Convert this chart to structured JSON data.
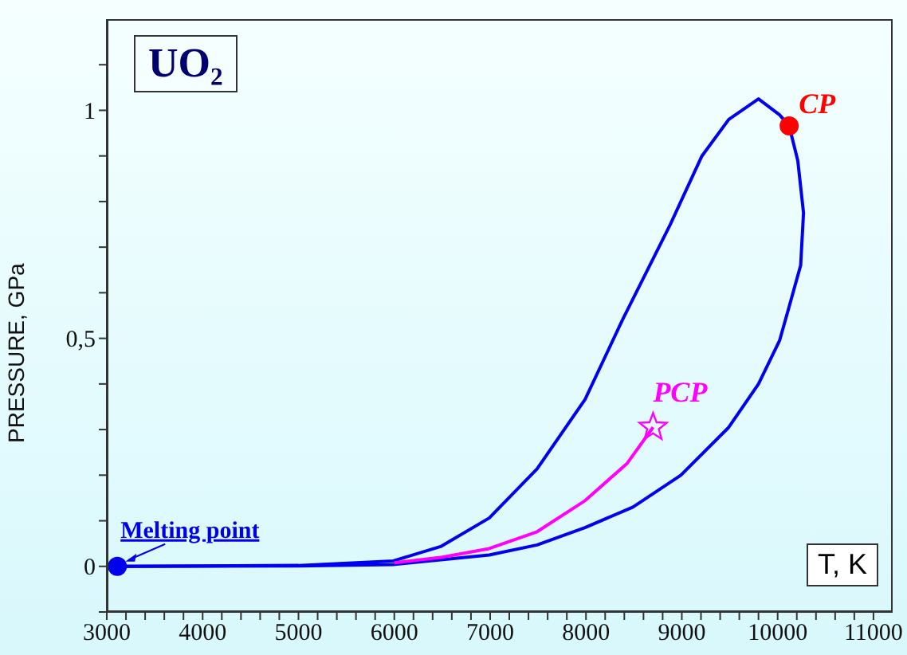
{
  "chart_data": {
    "type": "line",
    "title": "UO₂",
    "xlabel": "T, K",
    "ylabel": "PRESSURE, GPa",
    "xlim": [
      3000,
      11200
    ],
    "ylim": [
      -0.1,
      1.2
    ],
    "xticks": [
      3000,
      {
        "value": 3200,
        "label": null
      },
      {
        "value": 3400,
        "label": null
      },
      {
        "value": 3600,
        "label": null
      },
      {
        "value": 3800,
        "label": null
      },
      4000,
      {
        "value": 4200,
        "label": null
      },
      {
        "value": 4400,
        "label": null
      },
      {
        "value": 4600,
        "label": null
      },
      {
        "value": 4800,
        "label": null
      },
      5000,
      {
        "value": 5200,
        "label": null
      },
      {
        "value": 5400,
        "label": null
      },
      {
        "value": 5600,
        "label": null
      },
      {
        "value": 5800,
        "label": null
      },
      6000,
      {
        "value": 6200,
        "label": null
      },
      {
        "value": 6400,
        "label": null
      },
      {
        "value": 6600,
        "label": null
      },
      {
        "value": 6800,
        "label": null
      },
      7000,
      {
        "value": 7200,
        "label": null
      },
      {
        "value": 7400,
        "label": null
      },
      {
        "value": 7600,
        "label": null
      },
      {
        "value": 7800,
        "label": null
      },
      8000,
      {
        "value": 8200,
        "label": null
      },
      {
        "value": 8400,
        "label": null
      },
      {
        "value": 8600,
        "label": null
      },
      {
        "value": 8800,
        "label": null
      },
      9000,
      {
        "value": 9200,
        "label": null
      },
      {
        "value": 9400,
        "label": null
      },
      {
        "value": 9600,
        "label": null
      },
      {
        "value": 9800,
        "label": null
      },
      10000,
      {
        "value": 10200,
        "label": null
      },
      {
        "value": 10400,
        "label": null
      },
      {
        "value": 10600,
        "label": null
      },
      {
        "value": 10800,
        "label": null
      },
      11000
    ],
    "yticks": [
      {
        "value": -0.1,
        "label": null
      },
      0,
      {
        "value": 0.1,
        "label": null
      },
      {
        "value": 0.2,
        "label": null
      },
      {
        "value": 0.3,
        "label": null
      },
      {
        "value": 0.4,
        "label": null
      },
      {
        "value": 0.5,
        "label": "0,5"
      },
      {
        "value": 0.6,
        "label": null
      },
      {
        "value": 0.7,
        "label": null
      },
      {
        "value": 0.8,
        "label": null
      },
      {
        "value": 0.9,
        "label": null
      },
      1,
      {
        "value": 1.1,
        "label": null
      }
    ],
    "grid": false,
    "marker": "none",
    "line_style": "solid",
    "series": [
      {
        "color": "#0000ee",
        "x": [
          3110,
          5000,
          5990,
          6490,
          6990,
          7490,
          7990,
          8380,
          8880,
          9210,
          9490,
          9800,
          10020,
          10120
        ],
        "values": [
          0,
          0.002,
          0.012,
          0.044,
          0.106,
          0.214,
          0.366,
          0.54,
          0.75,
          0.9,
          0.98,
          1.025,
          0.99,
          0.966
        ]
      },
      {
        "color": "#0000ee",
        "x": [
          3110,
          5000,
          5990,
          6990,
          7490,
          7990,
          8490,
          8990,
          9490,
          9800,
          10020,
          10130,
          10240,
          10270,
          10210,
          10120
        ],
        "values": [
          0,
          0.001,
          0.004,
          0.025,
          0.047,
          0.085,
          0.13,
          0.2,
          0.305,
          0.4,
          0.495,
          0.577,
          0.66,
          0.775,
          0.89,
          0.966
        ]
      },
      {
        "color": "#ff00ff",
        "x": [
          6000,
          6500,
          6990,
          7490,
          7990,
          8430,
          8700
        ],
        "values": [
          0.008,
          0.02,
          0.039,
          0.076,
          0.144,
          0.226,
          0.305
        ]
      },
      {
        "type": "scatter",
        "color": "#0000ee",
        "marker": "circle",
        "x": [
          3110
        ],
        "values": [
          0
        ]
      },
      {
        "type": "scatter",
        "color": "#ff0000",
        "marker": "circle",
        "x": [
          10120
        ],
        "values": [
          0.966
        ]
      },
      {
        "type": "scatter",
        "color": "#ff00ff",
        "marker": "star",
        "x": [
          8700
        ],
        "values": [
          0.305
        ]
      }
    ],
    "annotations": [
      {
        "text": "Melting point",
        "x": 3110,
        "y": 0
      },
      {
        "text": "CP",
        "x": 10120,
        "y": 0.966
      },
      {
        "text": "PCP",
        "x": 8700,
        "y": 0.305
      }
    ]
  }
}
